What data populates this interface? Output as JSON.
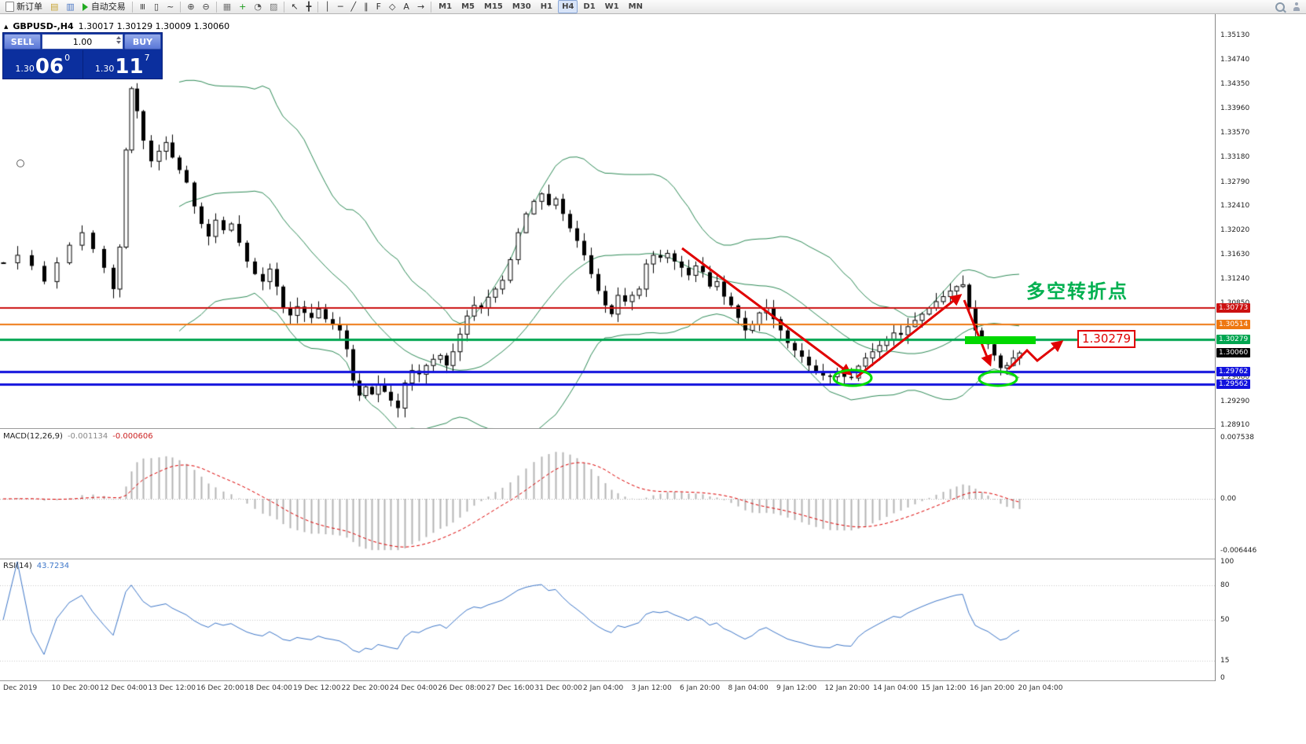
{
  "toolbar": {
    "buttons": [
      {
        "name": "new-order-button",
        "label": "新订单",
        "icon": "paper"
      },
      {
        "name": "market-watch-button",
        "glyph": "▤",
        "color": "#c8a432"
      },
      {
        "name": "navigator-button",
        "glyph": "▥",
        "color": "#4a76c4"
      },
      {
        "name": "autotrading-button",
        "label": "自动交易",
        "icon": "play"
      },
      {
        "sep": true
      },
      {
        "name": "bar-chart-button",
        "glyph": "≡",
        "rot": true,
        "color": "#333"
      },
      {
        "name": "candlestick-chart-button",
        "glyph": "▯",
        "color": "#333"
      },
      {
        "name": "line-chart-button",
        "glyph": "~",
        "color": "#333"
      },
      {
        "sep": true
      },
      {
        "name": "zoom-in-button",
        "glyph": "⊕",
        "color": "#444"
      },
      {
        "name": "zoom-out-button",
        "glyph": "⊖",
        "color": "#444"
      },
      {
        "sep": true
      },
      {
        "name": "tile-windows-button",
        "glyph": "▦",
        "color": "#777"
      },
      {
        "name": "indicators-button",
        "glyph": "+",
        "color": "#1a9a1a"
      },
      {
        "name": "periods-button",
        "glyph": "◔",
        "color": "#555"
      },
      {
        "name": "templates-button",
        "glyph": "▨",
        "color": "#777"
      },
      {
        "sep": true
      },
      {
        "name": "cursor-button",
        "glyph": "↖",
        "color": "#333"
      },
      {
        "name": "crosshair-button",
        "glyph": "╋",
        "color": "#333"
      },
      {
        "sep": true
      },
      {
        "name": "vertical-line-button",
        "glyph": "│",
        "color": "#333"
      },
      {
        "name": "horizontal-line-button",
        "glyph": "─",
        "color": "#333"
      },
      {
        "name": "trendline-button",
        "glyph": "╱",
        "color": "#333"
      },
      {
        "name": "channel-button",
        "glyph": "∥",
        "color": "#333"
      },
      {
        "name": "fibonacci-button",
        "glyph": "F",
        "color": "#333"
      },
      {
        "name": "shapes-button",
        "glyph": "◇",
        "color": "#333"
      },
      {
        "name": "text-button",
        "glyph": "A",
        "color": "#333"
      },
      {
        "name": "arrow-tool-button",
        "glyph": "→",
        "color": "#333"
      },
      {
        "sep": true
      }
    ],
    "timeframes": [
      "M1",
      "M5",
      "M15",
      "M30",
      "H1",
      "H4",
      "D1",
      "W1",
      "MN"
    ],
    "active_timeframe": "H4",
    "right_icons": [
      {
        "name": "search-icon-button"
      },
      {
        "name": "community-icon-button"
      }
    ]
  },
  "chart": {
    "header": {
      "collapse_icon": "▲",
      "symbol": "GBPUSD-,H4",
      "ohlc": "1.30017 1.30129 1.30009 1.30060"
    },
    "trade_panel": {
      "sell_label": "SELL",
      "buy_label": "BUY",
      "volume": "1.00",
      "bid": {
        "main": "1.30",
        "big": "06",
        "sup": "0"
      },
      "ask": {
        "main": "1.30",
        "big": "11",
        "sup": "7"
      }
    },
    "current_price": "1.30060",
    "price_scale_ticks": [
      "1.35130",
      "1.34740",
      "1.34350",
      "1.33960",
      "1.33570",
      "1.33180",
      "1.32790",
      "1.32410",
      "1.32020",
      "1.31630",
      "1.31240",
      "1.30850",
      "1.30460",
      "1.29680",
      "1.29290",
      "1.28910"
    ],
    "lines": [
      {
        "price": "1.30773",
        "value": 1.30773,
        "color": "#cc1111",
        "width": 2
      },
      {
        "price": "1.30514",
        "value": 1.30514,
        "color": "#ee7711",
        "width": 2
      },
      {
        "price": "1.30279",
        "value": 1.30279,
        "color": "#00a550",
        "width": 3
      },
      {
        "price": "1.29762",
        "value": 1.29762,
        "color": "#1111dd",
        "width": 3
      },
      {
        "price": "1.29562",
        "value": 1.29562,
        "color": "#1111dd",
        "width": 3
      }
    ],
    "annotations": {
      "turning_point_text": "多空转折点",
      "price_callout": "1.30279"
    }
  },
  "macd": {
    "name": "MACD(12,26,9)",
    "value1": "-0.001134",
    "value2": "-0.000606",
    "scale_top": "0.007538",
    "scale_zero": "0.00",
    "scale_bottom": "-0.006446"
  },
  "rsi": {
    "name": "RSI(14)",
    "value": "43.7234",
    "scale": [
      {
        "label": "100",
        "value": 100
      },
      {
        "label": "80",
        "value": 80
      },
      {
        "label": "50",
        "value": 50
      },
      {
        "label": "15",
        "value": 15
      },
      {
        "label": "0",
        "value": 0
      }
    ]
  },
  "time_axis": [
    "Dec 2019",
    "10 Dec 20:00",
    "12 Dec 04:00",
    "13 Dec 12:00",
    "16 Dec 20:00",
    "18 Dec 04:00",
    "19 Dec 12:00",
    "22 Dec 20:00",
    "24 Dec 04:00",
    "26 Dec 08:00",
    "27 Dec 16:00",
    "31 Dec 00:00",
    "2 Jan 04:00",
    "3 Jan 12:00",
    "6 Jan 20:00",
    "8 Jan 04:00",
    "9 Jan 12:00",
    "12 Jan 20:00",
    "14 Jan 04:00",
    "15 Jan 12:00",
    "16 Jan 20:00",
    "20 Jan 04:00"
  ],
  "chart_data": {
    "type": "candlestick",
    "symbol": "GBPUSD",
    "timeframe": "H4",
    "last_ohlc": {
      "open": 1.30017,
      "high": 1.30129,
      "low": 1.30009,
      "close": 1.3006
    },
    "bid": 1.3006,
    "ask": 1.30117,
    "price_axis_range": [
      1.2891,
      1.3513
    ],
    "overlays": {
      "bollinger_bands": {
        "period": 20,
        "deviation": 2,
        "color": "#2e8b57"
      }
    },
    "horizontal_levels": [
      1.30773,
      1.30514,
      1.30279,
      1.29762,
      1.29562
    ],
    "indicators": [
      {
        "type": "MACD",
        "params": [
          12,
          26,
          9
        ],
        "values": [
          -0.001134,
          -0.000606
        ],
        "axis": [
          -0.006446,
          0.007538
        ]
      },
      {
        "type": "RSI",
        "params": [
          14
        ],
        "value": 43.7234,
        "axis": [
          0,
          100
        ]
      }
    ],
    "candles_path": [
      [
        0,
        1.315
      ],
      [
        18,
        1.3162
      ],
      [
        36,
        1.3145
      ],
      [
        52,
        1.312
      ],
      [
        68,
        1.315
      ],
      [
        84,
        1.3178
      ],
      [
        100,
        1.3198
      ],
      [
        114,
        1.3172
      ],
      [
        128,
        1.3142
      ],
      [
        140,
        1.3108
      ],
      [
        148,
        1.3175
      ],
      [
        156,
        1.333
      ],
      [
        163,
        1.3428
      ],
      [
        170,
        1.3392
      ],
      [
        178,
        1.3345
      ],
      [
        188,
        1.3312
      ],
      [
        198,
        1.3328
      ],
      [
        207,
        1.3342
      ],
      [
        215,
        1.3318
      ],
      [
        224,
        1.3298
      ],
      [
        233,
        1.3278
      ],
      [
        243,
        1.324
      ],
      [
        252,
        1.3212
      ],
      [
        261,
        1.3192
      ],
      [
        270,
        1.3218
      ],
      [
        280,
        1.3202
      ],
      [
        290,
        1.3212
      ],
      [
        300,
        1.3182
      ],
      [
        310,
        1.3152
      ],
      [
        320,
        1.3132
      ],
      [
        330,
        1.312
      ],
      [
        339,
        1.314
      ],
      [
        348,
        1.3112
      ],
      [
        356,
        1.3078
      ],
      [
        365,
        1.3066
      ],
      [
        374,
        1.308
      ],
      [
        383,
        1.307
      ],
      [
        392,
        1.3062
      ],
      [
        401,
        1.3076
      ],
      [
        410,
        1.306
      ],
      [
        419,
        1.3052
      ],
      [
        428,
        1.3042
      ],
      [
        437,
        1.3012
      ],
      [
        445,
        1.2962
      ],
      [
        453,
        1.2938
      ],
      [
        461,
        1.2952
      ],
      [
        469,
        1.294
      ],
      [
        477,
        1.2956
      ],
      [
        485,
        1.2944
      ],
      [
        493,
        1.293
      ],
      [
        502,
        1.2918
      ],
      [
        511,
        1.2958
      ],
      [
        520,
        1.2978
      ],
      [
        529,
        1.2972
      ],
      [
        538,
        1.2986
      ],
      [
        547,
        1.2996
      ],
      [
        556,
        1.3002
      ],
      [
        564,
        1.2986
      ],
      [
        572,
        1.3008
      ],
      [
        581,
        1.3036
      ],
      [
        590,
        1.3065
      ],
      [
        599,
        1.3082
      ],
      [
        608,
        1.3078
      ],
      [
        617,
        1.3095
      ],
      [
        626,
        1.3108
      ],
      [
        635,
        1.3122
      ],
      [
        645,
        1.3155
      ],
      [
        655,
        1.3198
      ],
      [
        665,
        1.3228
      ],
      [
        675,
        1.3248
      ],
      [
        685,
        1.326
      ],
      [
        694,
        1.3242
      ],
      [
        703,
        1.3252
      ],
      [
        712,
        1.3228
      ],
      [
        721,
        1.3205
      ],
      [
        730,
        1.3185
      ],
      [
        739,
        1.3162
      ],
      [
        748,
        1.3132
      ],
      [
        757,
        1.3105
      ],
      [
        766,
        1.3082
      ],
      [
        774,
        1.3068
      ],
      [
        782,
        1.3098
      ],
      [
        791,
        1.3088
      ],
      [
        800,
        1.3098
      ],
      [
        809,
        1.3108
      ],
      [
        818,
        1.3148
      ],
      [
        827,
        1.3162
      ],
      [
        836,
        1.3158
      ],
      [
        845,
        1.3165
      ],
      [
        854,
        1.3152
      ],
      [
        863,
        1.3142
      ],
      [
        872,
        1.313
      ],
      [
        881,
        1.3145
      ],
      [
        890,
        1.3135
      ],
      [
        899,
        1.3112
      ],
      [
        908,
        1.312
      ],
      [
        917,
        1.3096
      ],
      [
        926,
        1.3082
      ],
      [
        935,
        1.3062
      ],
      [
        944,
        1.3042
      ],
      [
        953,
        1.3052
      ],
      [
        962,
        1.307
      ],
      [
        971,
        1.3078
      ],
      [
        980,
        1.306
      ],
      [
        989,
        1.3042
      ],
      [
        998,
        1.3022
      ],
      [
        1007,
        1.301
      ],
      [
        1016,
        1.3
      ],
      [
        1025,
        1.2986
      ],
      [
        1034,
        1.2976
      ],
      [
        1043,
        1.297
      ],
      [
        1052,
        1.2968
      ],
      [
        1061,
        1.2975
      ],
      [
        1070,
        1.2968
      ],
      [
        1079,
        1.2966
      ],
      [
        1088,
        1.2985
      ],
      [
        1097,
        1.2998
      ],
      [
        1106,
        1.3008
      ],
      [
        1115,
        1.3018
      ],
      [
        1124,
        1.3028
      ],
      [
        1133,
        1.3038
      ],
      [
        1142,
        1.3035
      ],
      [
        1151,
        1.3048
      ],
      [
        1160,
        1.3058
      ],
      [
        1169,
        1.3068
      ],
      [
        1178,
        1.3078
      ],
      [
        1187,
        1.3088
      ],
      [
        1196,
        1.3096
      ],
      [
        1205,
        1.3105
      ],
      [
        1213,
        1.3112
      ],
      [
        1221,
        1.3115
      ],
      [
        1229,
        1.3078
      ],
      [
        1237,
        1.3042
      ],
      [
        1245,
        1.303
      ],
      [
        1253,
        1.302
      ],
      [
        1261,
        1.3002
      ],
      [
        1269,
        1.2982
      ],
      [
        1277,
        1.2986
      ],
      [
        1285,
        1.2998
      ],
      [
        1293,
        1.3006
      ]
    ]
  }
}
